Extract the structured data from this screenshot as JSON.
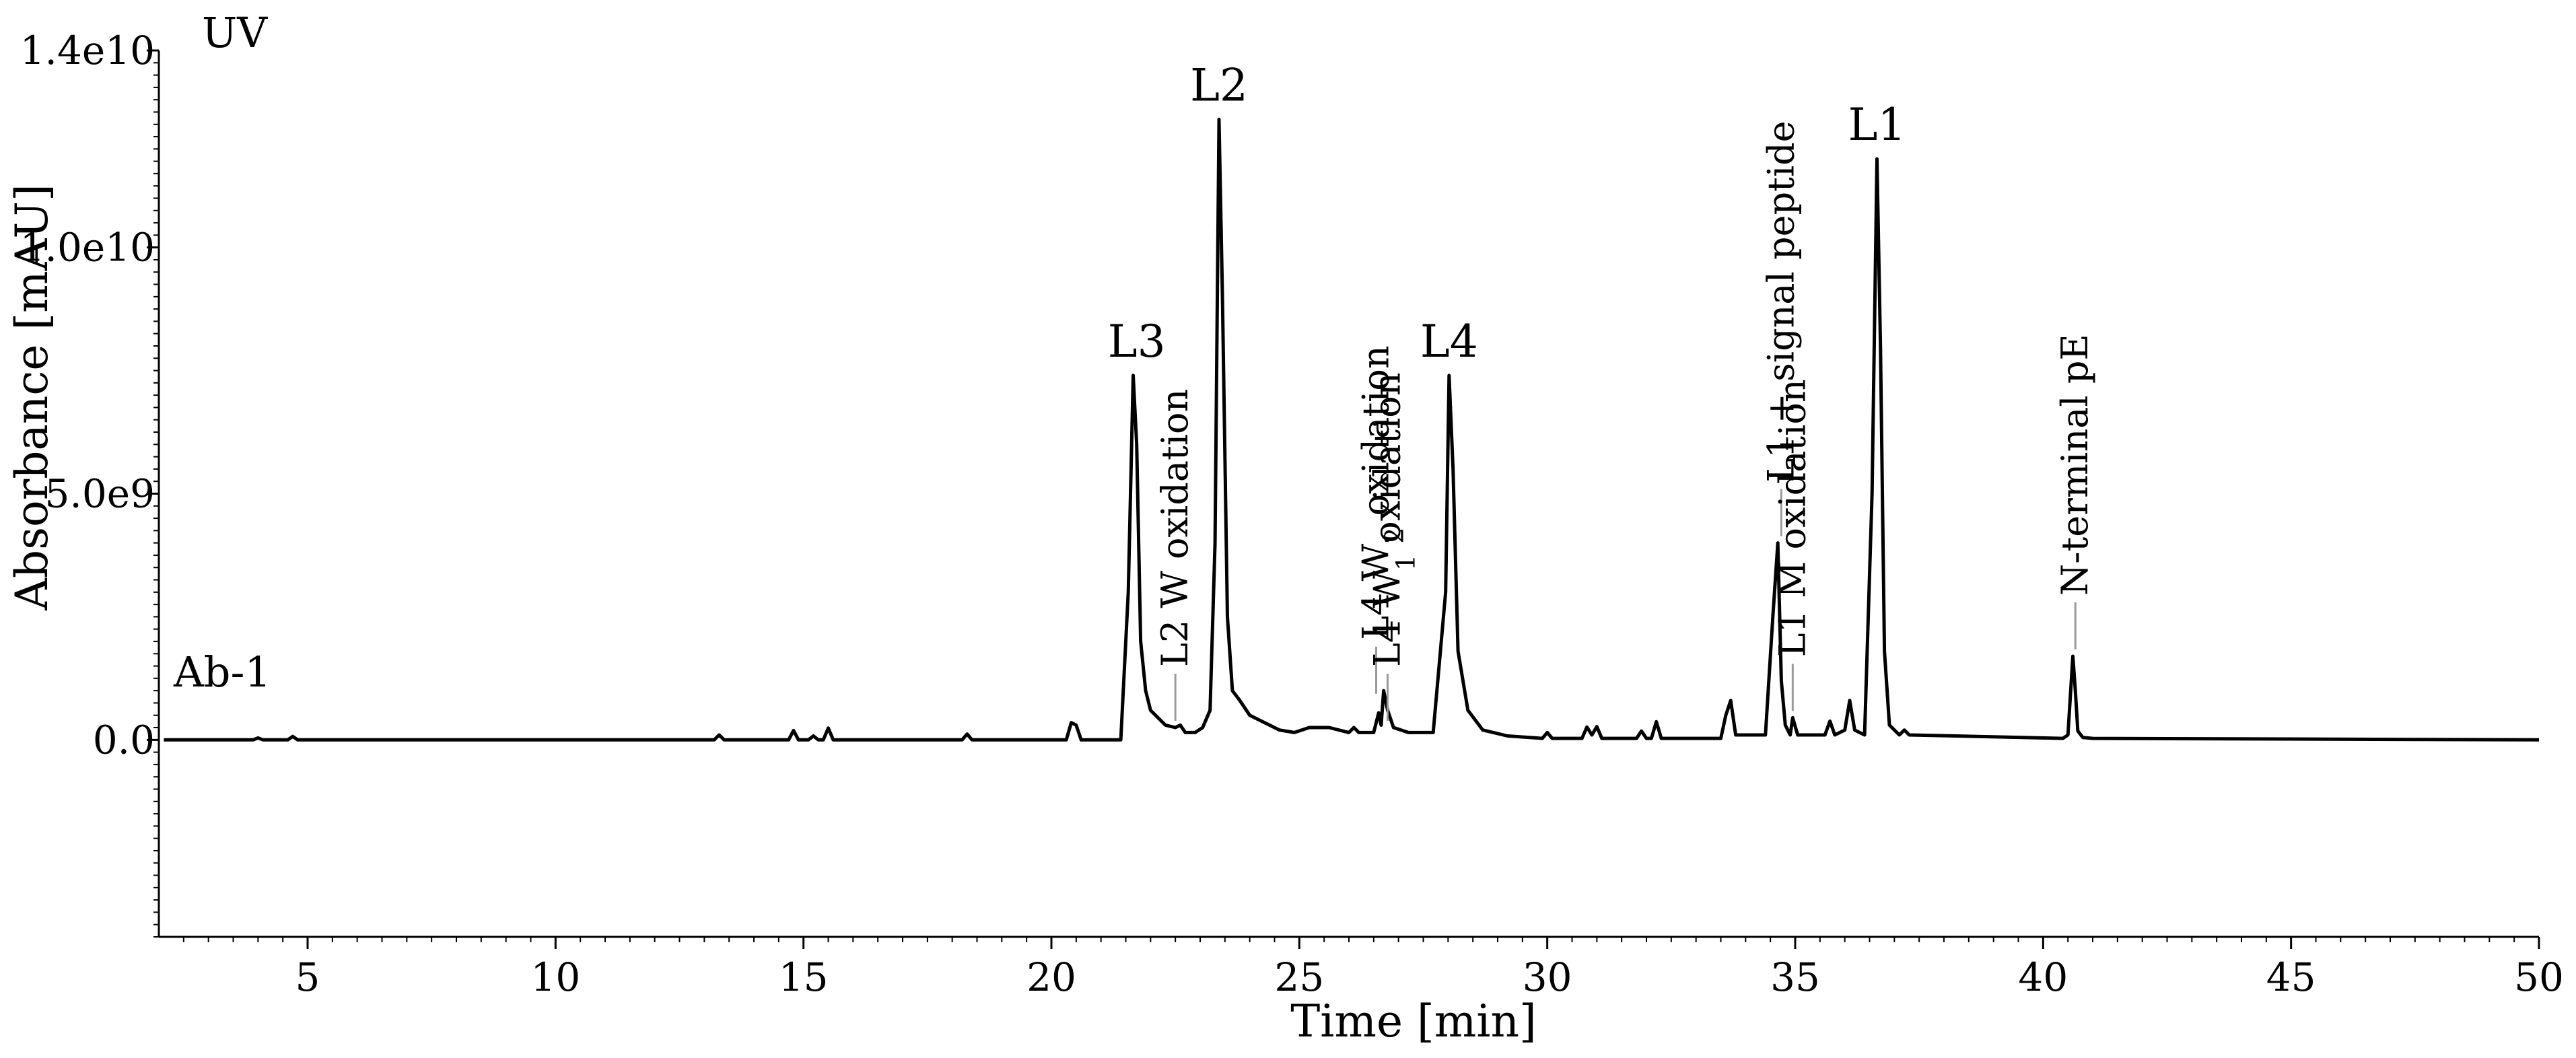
{
  "chart_data": {
    "type": "line",
    "title": "",
    "xlabel": "Time [min]",
    "ylabel": "Absorbance [mAU]",
    "xlim": [
      2.0,
      50.0
    ],
    "ylim": [
      -4000000000.0,
      14000000000.0
    ],
    "x_ticks": [
      5,
      10,
      15,
      20,
      25,
      30,
      35,
      40,
      45,
      50
    ],
    "x_tick_labels": [
      "5",
      "10",
      "15",
      "20",
      "25",
      "30",
      "35",
      "40",
      "45",
      "50"
    ],
    "y_ticks": [
      0,
      5000000000.0,
      10000000000.0,
      14000000000.0
    ],
    "y_tick_labels": [
      "0.0",
      "5.0e9",
      "1.0e10",
      "1.4e10"
    ],
    "grid": false,
    "corner_labels": {
      "top_left": "UV",
      "trace_name": "Ab-1"
    },
    "series": [
      {
        "x": [
          2.1,
          3.9,
          4.0,
          4.1,
          4.6,
          4.7,
          4.8,
          8.0,
          13.2,
          13.3,
          13.4,
          14.7,
          14.8,
          14.9,
          15.1,
          15.2,
          15.3,
          15.4,
          15.5,
          15.6,
          18.2,
          18.3,
          18.4,
          20.3,
          20.4,
          20.5,
          20.6,
          21.4,
          21.55,
          21.65,
          21.72,
          21.8,
          21.9,
          22.0,
          22.3,
          22.5,
          22.6,
          22.7,
          22.9,
          23.05,
          23.2,
          23.3,
          23.38,
          23.45,
          23.55,
          23.65,
          23.8,
          24.0,
          24.2,
          24.4,
          24.6,
          24.9,
          25.2,
          25.6,
          26.0,
          26.1,
          26.2,
          26.5,
          26.6,
          26.65,
          26.7,
          26.78,
          26.9,
          27.2,
          27.7,
          27.95,
          28.02,
          28.1,
          28.2,
          28.4,
          28.7,
          29.2,
          29.9,
          30.0,
          30.1,
          30.7,
          30.8,
          30.9,
          31.0,
          31.1,
          31.8,
          31.9,
          32.0,
          32.1,
          32.2,
          32.3,
          32.4,
          33.5,
          33.6,
          33.7,
          33.8,
          34.4,
          34.55,
          34.65,
          34.72,
          34.8,
          34.9,
          34.95,
          35.05,
          35.6,
          35.7,
          35.8,
          36.0,
          36.1,
          36.2,
          36.4,
          36.55,
          36.65,
          36.72,
          36.8,
          36.9,
          37.1,
          37.2,
          37.3,
          40.4,
          40.5,
          40.6,
          40.65,
          40.7,
          40.8,
          41.0,
          50.0
        ],
        "values": [
          0.0,
          0.0,
          40000000.0,
          0.0,
          0.0,
          70000000.0,
          0.0,
          0.0,
          0.0,
          100000000.0,
          0.0,
          0.0,
          190000000.0,
          0.0,
          0.0,
          80000000.0,
          0.0,
          0.0,
          240000000.0,
          0.0,
          0.0,
          120000000.0,
          0.0,
          0.0,
          350000000.0,
          300000000.0,
          0.0,
          0.0,
          3000000000.0,
          7400000000.0,
          6000000000.0,
          2000000000.0,
          1000000000.0,
          600000000.0,
          300000000.0,
          250000000.0,
          300000000.0,
          150000000.0,
          150000000.0,
          250000000.0,
          600000000.0,
          4000000000.0,
          12600000000.0,
          9000000000.0,
          2500000000.0,
          1000000000.0,
          800000000.0,
          500000000.0,
          400000000.0,
          300000000.0,
          200000000.0,
          150000000.0,
          250000000.0,
          250000000.0,
          150000000.0,
          250000000.0,
          150000000.0,
          150000000.0,
          550000000.0,
          300000000.0,
          1000000000.0,
          600000000.0,
          250000000.0,
          150000000.0,
          150000000.0,
          3000000000.0,
          7400000000.0,
          5500000000.0,
          1800000000.0,
          600000000.0,
          200000000.0,
          80000000.0,
          30000000.0,
          150000000.0,
          30000000.0,
          30000000.0,
          260000000.0,
          100000000.0,
          270000000.0,
          30000000.0,
          30000000.0,
          180000000.0,
          30000000.0,
          30000000.0,
          370000000.0,
          30000000.0,
          30000000.0,
          30000000.0,
          500000000.0,
          800000000.0,
          100000000.0,
          100000000.0,
          2500000000.0,
          4000000000.0,
          1200000000.0,
          300000000.0,
          100000000.0,
          450000000.0,
          100000000.0,
          100000000.0,
          380000000.0,
          100000000.0,
          200000000.0,
          800000000.0,
          200000000.0,
          100000000.0,
          5000000000.0,
          11800000000.0,
          8000000000.0,
          1800000000.0,
          300000000.0,
          100000000.0,
          200000000.0,
          100000000.0,
          30000000.0,
          100000000.0,
          1700000000.0,
          1000000000.0,
          180000000.0,
          50000000.0,
          30000000.0,
          0.0
        ]
      }
    ],
    "peak_labels": [
      {
        "text": "L3",
        "x": 21.72,
        "y": 7400000000.0
      },
      {
        "text": "L2",
        "x": 23.38,
        "y": 12600000000.0
      },
      {
        "text": "L4",
        "x": 28.02,
        "y": 7400000000.0
      },
      {
        "text": "L1",
        "x": 36.65,
        "y": 11800000000.0
      }
    ],
    "annotations": [
      {
        "x": 22.5,
        "y": 250000000.0,
        "parts": [
          {
            "t": "L2 W oxidation"
          }
        ]
      },
      {
        "x": 26.55,
        "y": 800000000.0,
        "parts": [
          {
            "t": "L4 W"
          },
          {
            "t": "2",
            "sub": true
          },
          {
            "t": " oxidation"
          }
        ]
      },
      {
        "x": 26.78,
        "y": 250000000.0,
        "parts": [
          {
            "t": "L4 W"
          },
          {
            "t": "1",
            "sub": true
          },
          {
            "t": " oxidation"
          }
        ]
      },
      {
        "x": 34.72,
        "y": 4000000000.0,
        "parts": [
          {
            "t": "L1 + signal peptide"
          }
        ]
      },
      {
        "x": 34.95,
        "y": 450000000.0,
        "parts": [
          {
            "t": "L1 M oxidation"
          }
        ]
      },
      {
        "x": 40.65,
        "y": 1700000000.0,
        "parts": [
          {
            "t": "N-terminal pE"
          }
        ]
      }
    ]
  }
}
